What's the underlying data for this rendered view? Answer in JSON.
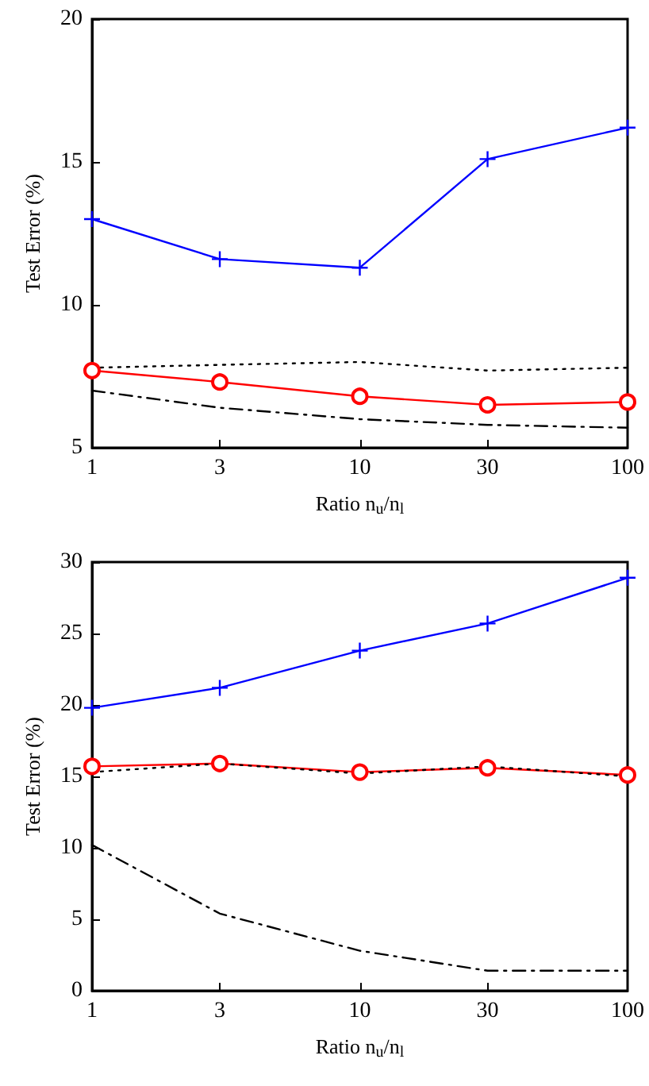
{
  "chart_data": [
    {
      "type": "line",
      "xlabel": "Ratio n$_{u}$/n$_{l}$",
      "ylabel": "Test Error (%)",
      "x": [
        1,
        3,
        10,
        30,
        100
      ],
      "log": "x",
      "xlim": [
        1,
        100
      ],
      "xticks": [
        1,
        3,
        10,
        30,
        100
      ],
      "ylim": [
        5,
        20
      ],
      "yticks": [
        5,
        10,
        15,
        20
      ],
      "grid": false,
      "series": [
        {
          "color": "#0000ff",
          "marker": "cross",
          "line_style": "solid",
          "values": [
            13.0,
            11.6,
            11.3,
            15.1,
            16.2
          ]
        },
        {
          "color": "#ff0000",
          "marker": "circle",
          "line_style": "solid",
          "values": [
            7.7,
            7.3,
            6.8,
            6.5,
            6.6
          ]
        },
        {
          "color": "#000000",
          "marker": "none",
          "line_style": "dotted",
          "values": [
            7.8,
            7.9,
            8.0,
            7.7,
            7.8
          ]
        },
        {
          "color": "#000000",
          "marker": "none",
          "line_style": "dashdot",
          "values": [
            7.0,
            6.4,
            6.0,
            5.8,
            5.7
          ]
        }
      ]
    },
    {
      "type": "line",
      "xlabel": "Ratio n$_{u}$/n$_{l}$",
      "ylabel": "Test Error (%)",
      "x": [
        1,
        3,
        10,
        30,
        100
      ],
      "log": "x",
      "xlim": [
        1,
        100
      ],
      "xticks": [
        1,
        3,
        10,
        30,
        100
      ],
      "ylim": [
        0,
        30
      ],
      "yticks": [
        0,
        5,
        10,
        15,
        20,
        25,
        30
      ],
      "grid": false,
      "series": [
        {
          "color": "#0000ff",
          "marker": "cross",
          "line_style": "solid",
          "values": [
            19.8,
            21.2,
            23.8,
            25.7,
            28.9
          ]
        },
        {
          "color": "#ff0000",
          "marker": "circle",
          "line_style": "solid",
          "values": [
            15.7,
            15.9,
            15.3,
            15.6,
            15.1
          ]
        },
        {
          "color": "#000000",
          "marker": "none",
          "line_style": "dotted",
          "values": [
            15.3,
            15.9,
            15.2,
            15.7,
            15.0
          ]
        },
        {
          "color": "#000000",
          "marker": "none",
          "line_style": "dashdot",
          "values": [
            10.2,
            5.4,
            2.8,
            1.4,
            1.4
          ]
        }
      ]
    }
  ]
}
